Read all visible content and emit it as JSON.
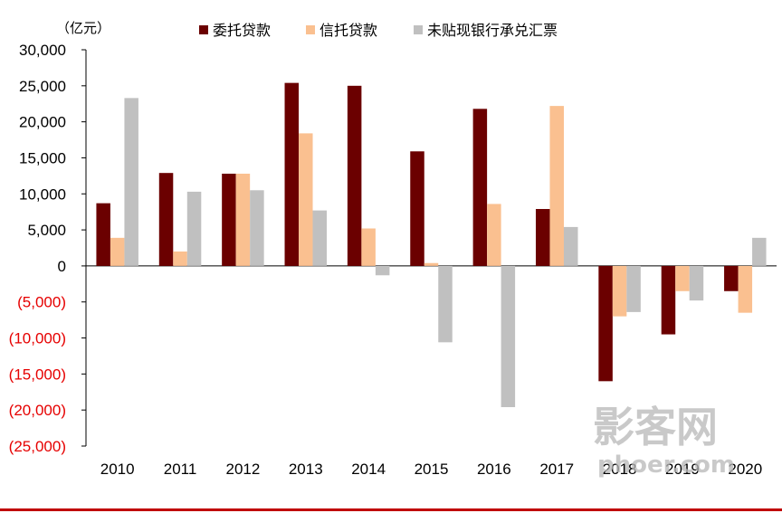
{
  "chart_data": {
    "type": "bar",
    "title": "",
    "unit_label": "（亿元）",
    "xlabel": "",
    "ylabel": "",
    "ylim": [
      -25000,
      30000
    ],
    "yticks": [
      30000,
      25000,
      20000,
      15000,
      10000,
      5000,
      0,
      -5000,
      -10000,
      -15000,
      -20000,
      -25000
    ],
    "ytick_labels": [
      "30,000",
      "25,000",
      "20,000",
      "15,000",
      "10,000",
      "5,000",
      "0",
      "(5,000)",
      "(10,000)",
      "(15,000)",
      "(20,000)",
      "(25,000)"
    ],
    "categories": [
      "2010",
      "2011",
      "2012",
      "2013",
      "2014",
      "2015",
      "2016",
      "2017",
      "2018",
      "2019",
      "2020"
    ],
    "series": [
      {
        "name": "委托贷款",
        "color": "#6b0000",
        "values": [
          8700,
          12900,
          12800,
          25400,
          25000,
          15900,
          21800,
          7900,
          -16000,
          -9500,
          -3500
        ]
      },
      {
        "name": "信托贷款",
        "color": "#fac090",
        "values": [
          3900,
          2000,
          12800,
          18400,
          5200,
          400,
          8600,
          22200,
          -7000,
          -3500,
          -6500
        ]
      },
      {
        "name": "未贴现银行承兑汇票",
        "color": "#c0c0c0",
        "values": [
          23300,
          10300,
          10500,
          7700,
          -1300,
          -10600,
          -19600,
          5400,
          -6400,
          -4800,
          3900
        ]
      }
    ],
    "negative_tick_color": "#e60000",
    "legend_position": "top"
  },
  "watermark": {
    "cn": "影客网",
    "en": "phoer.com"
  }
}
